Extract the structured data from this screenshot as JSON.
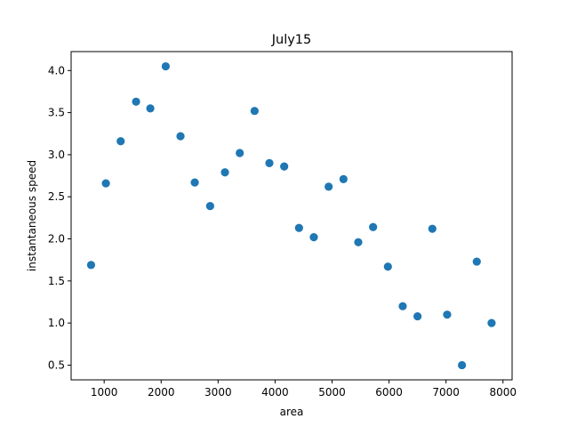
{
  "chart_data": {
    "type": "scatter",
    "title": "July15",
    "xlabel": "area",
    "ylabel": "instantaneous speed",
    "xlim": [
      420,
      8160
    ],
    "ylim": [
      0.325,
      4.225
    ],
    "xticks": [
      1000,
      2000,
      3000,
      4000,
      5000,
      6000,
      7000,
      8000
    ],
    "xtick_labels": [
      "1000",
      "2000",
      "3000",
      "4000",
      "5000",
      "6000",
      "7000",
      "8000"
    ],
    "yticks": [
      0.5,
      1.0,
      1.5,
      2.0,
      2.5,
      3.0,
      3.5,
      4.0
    ],
    "ytick_labels": [
      "0.5",
      "1.0",
      "1.5",
      "2.0",
      "2.5",
      "3.0",
      "3.5",
      "4.0"
    ],
    "grid": false,
    "marker_color": "#1f77b4",
    "points": [
      {
        "x": 770,
        "y": 1.69
      },
      {
        "x": 1030,
        "y": 2.66
      },
      {
        "x": 1290,
        "y": 3.16
      },
      {
        "x": 1560,
        "y": 3.63
      },
      {
        "x": 1810,
        "y": 3.55
      },
      {
        "x": 2080,
        "y": 4.05
      },
      {
        "x": 2340,
        "y": 3.22
      },
      {
        "x": 2590,
        "y": 2.67
      },
      {
        "x": 2860,
        "y": 2.39
      },
      {
        "x": 3120,
        "y": 2.79
      },
      {
        "x": 3380,
        "y": 3.02
      },
      {
        "x": 3640,
        "y": 3.52
      },
      {
        "x": 3900,
        "y": 2.9
      },
      {
        "x": 4160,
        "y": 2.86
      },
      {
        "x": 4420,
        "y": 2.13
      },
      {
        "x": 4680,
        "y": 2.02
      },
      {
        "x": 4940,
        "y": 2.62
      },
      {
        "x": 5200,
        "y": 2.71
      },
      {
        "x": 5460,
        "y": 1.96
      },
      {
        "x": 5720,
        "y": 2.14
      },
      {
        "x": 5980,
        "y": 1.67
      },
      {
        "x": 6240,
        "y": 1.2
      },
      {
        "x": 6500,
        "y": 1.08
      },
      {
        "x": 6760,
        "y": 2.12
      },
      {
        "x": 7020,
        "y": 1.1
      },
      {
        "x": 7280,
        "y": 0.5
      },
      {
        "x": 7540,
        "y": 1.73
      },
      {
        "x": 7800,
        "y": 1.0
      }
    ]
  }
}
